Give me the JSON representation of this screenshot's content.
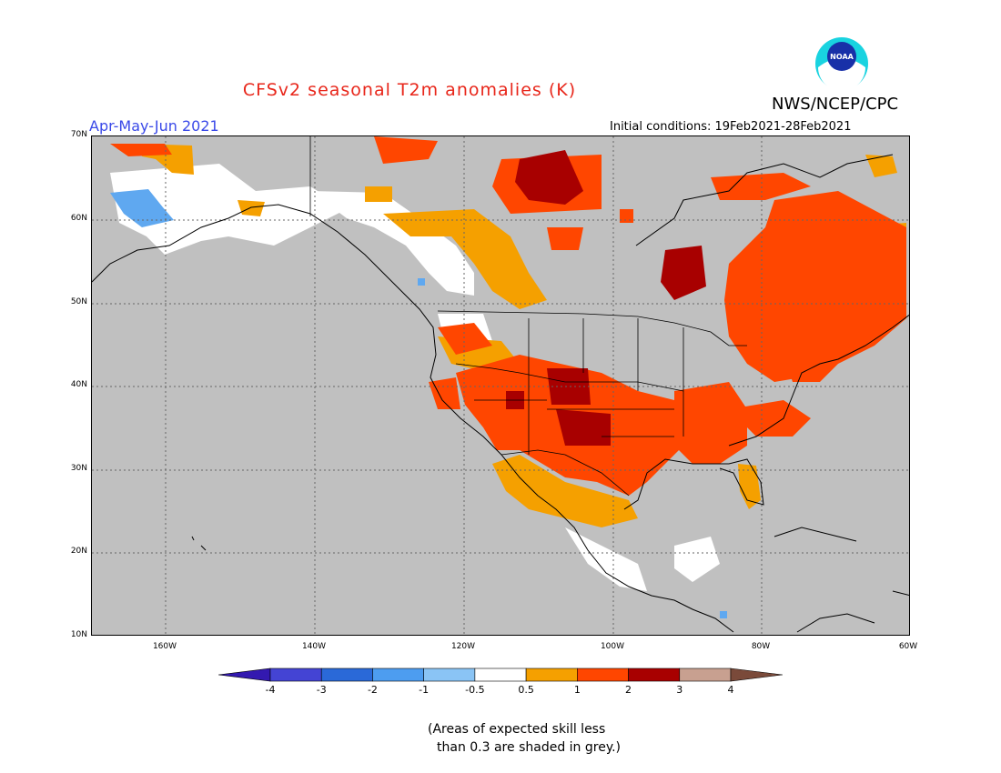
{
  "header": {
    "title": "CFSv2 seasonal T2m anomalies (K)",
    "title_color": "#e8261a",
    "period": "Apr-May-Jun 2021",
    "period_color": "#3a49e8",
    "initial_conditions": "Initial conditions: 19Feb2021-28Feb2021",
    "org": "NWS/NCEP/CPC",
    "logo_text": "NOAA"
  },
  "map": {
    "lat_labels": [
      "70N",
      "60N",
      "50N",
      "40N",
      "30N",
      "20N",
      "10N"
    ],
    "lon_labels": [
      "160W",
      "140W",
      "120W",
      "100W",
      "80W",
      "60W"
    ],
    "background_color": "#c0c0c0"
  },
  "colorbar": {
    "labels": [
      "-4",
      "-3",
      "-2",
      "-1",
      "-0.5",
      "0.5",
      "1",
      "2",
      "3",
      "4"
    ],
    "colors": [
      "#3319b0",
      "#4444d4",
      "#2a69d8",
      "#4d9df0",
      "#8ac4f5",
      "#ffffff",
      "#f5a000",
      "#ff4600",
      "#a80000",
      "#c8a090",
      "#7a4a3a"
    ]
  },
  "footnote": {
    "line1": "(Areas of expected skill less",
    "line2": "than 0.3 are shaded in grey.)"
  }
}
